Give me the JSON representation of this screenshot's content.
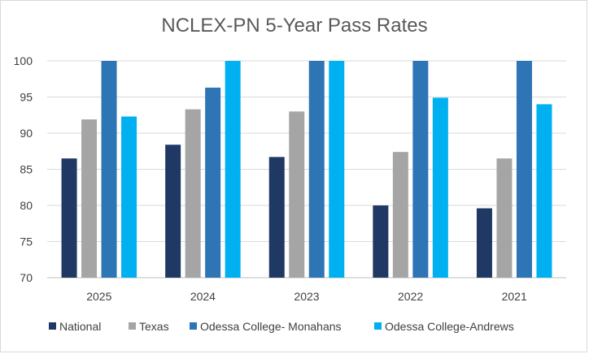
{
  "chart_data": {
    "type": "bar",
    "title": "NCLEX-PN 5-Year Pass Rates",
    "xlabel": "",
    "ylabel": "",
    "categories": [
      "2025",
      "2024",
      "2023",
      "2022",
      "2021"
    ],
    "ylim": [
      70,
      100
    ],
    "yticks": [
      70,
      75,
      80,
      85,
      90,
      95,
      100
    ],
    "grid": true,
    "legend_position": "bottom",
    "series": [
      {
        "name": "National",
        "color": "#1f3864",
        "values": [
          86.5,
          88.4,
          86.7,
          80.0,
          79.6
        ]
      },
      {
        "name": "Texas",
        "color": "#a5a5a5",
        "values": [
          91.9,
          93.3,
          93.0,
          87.4,
          86.5
        ]
      },
      {
        "name": "Odessa College- Monahans",
        "color": "#2e75b6",
        "values": [
          100,
          96.3,
          100,
          100,
          100
        ]
      },
      {
        "name": "Odessa College-Andrews",
        "color": "#00b0f0",
        "values": [
          92.3,
          100,
          100,
          94.9,
          94.0
        ]
      }
    ]
  }
}
